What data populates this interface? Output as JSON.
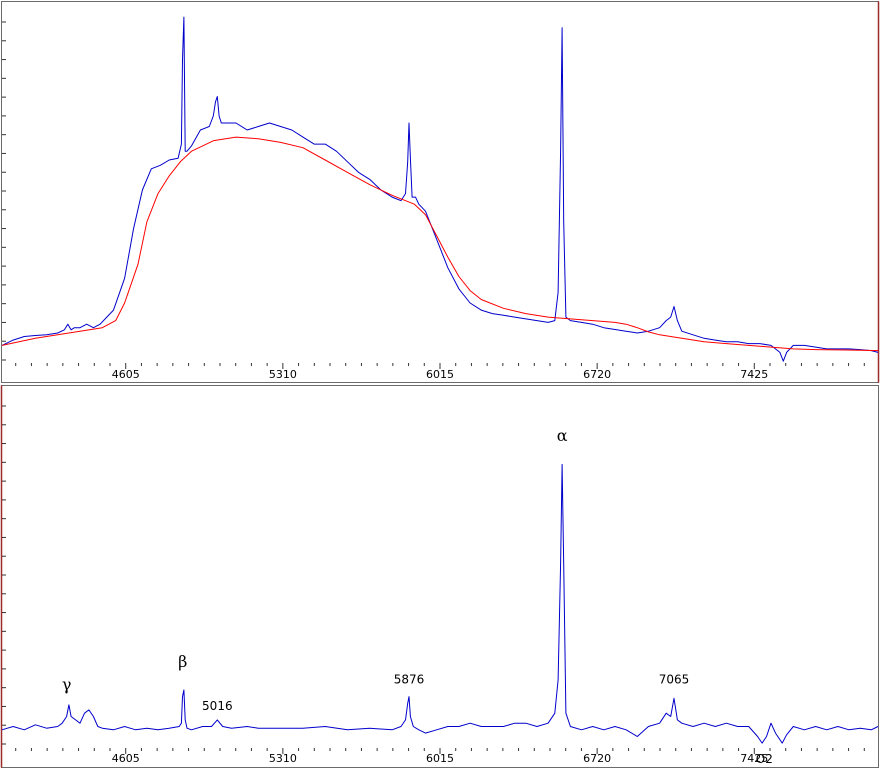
{
  "chart_data": [
    {
      "type": "line",
      "title": "",
      "xlabel": "",
      "ylabel": "",
      "xlim": [
        4050,
        7980
      ],
      "ylim": [
        0,
        1.0
      ],
      "grid": false,
      "x_ticks": [
        4605,
        5310,
        6015,
        6720,
        7425
      ],
      "series": [
        {
          "color": "#0000cc",
          "x": [
            4050,
            4100,
            4150,
            4200,
            4250,
            4300,
            4330,
            4345,
            4360,
            4375,
            4400,
            4430,
            4460,
            4490,
            4520,
            4550,
            4600,
            4640,
            4680,
            4720,
            4760,
            4800,
            4840,
            4855,
            4860,
            4866,
            4872,
            4880,
            4900,
            4940,
            4980,
            4998,
            5008,
            5016,
            5024,
            5034,
            5060,
            5100,
            5150,
            5200,
            5250,
            5300,
            5350,
            5400,
            5450,
            5500,
            5550,
            5600,
            5650,
            5700,
            5750,
            5800,
            5840,
            5860,
            5870,
            5876,
            5882,
            5890,
            5905,
            5920,
            5950,
            6000,
            6050,
            6100,
            6150,
            6200,
            6250,
            6300,
            6350,
            6400,
            6450,
            6500,
            6530,
            6545,
            6556,
            6563,
            6570,
            6580,
            6600,
            6650,
            6700,
            6750,
            6800,
            6850,
            6900,
            6950,
            7000,
            7030,
            7050,
            7065,
            7080,
            7100,
            7150,
            7200,
            7250,
            7300,
            7350,
            7400,
            7450,
            7500,
            7540,
            7555,
            7570,
            7600,
            7650,
            7700,
            7750,
            7800,
            7850,
            7900,
            7950,
            7980
          ],
          "values": [
            0.05,
            0.065,
            0.075,
            0.078,
            0.08,
            0.085,
            0.094,
            0.11,
            0.094,
            0.1,
            0.1,
            0.11,
            0.1,
            0.11,
            0.13,
            0.15,
            0.24,
            0.38,
            0.49,
            0.55,
            0.56,
            0.575,
            0.58,
            0.62,
            0.86,
            0.98,
            0.6,
            0.6,
            0.615,
            0.66,
            0.67,
            0.7,
            0.74,
            0.755,
            0.7,
            0.68,
            0.68,
            0.68,
            0.66,
            0.67,
            0.68,
            0.67,
            0.66,
            0.64,
            0.62,
            0.62,
            0.6,
            0.57,
            0.54,
            0.52,
            0.49,
            0.47,
            0.46,
            0.48,
            0.57,
            0.68,
            0.58,
            0.47,
            0.47,
            0.45,
            0.43,
            0.35,
            0.27,
            0.21,
            0.17,
            0.15,
            0.14,
            0.135,
            0.13,
            0.125,
            0.12,
            0.115,
            0.12,
            0.2,
            0.6,
            0.95,
            0.4,
            0.13,
            0.12,
            0.115,
            0.11,
            0.1,
            0.095,
            0.09,
            0.085,
            0.09,
            0.1,
            0.12,
            0.13,
            0.16,
            0.12,
            0.09,
            0.08,
            0.07,
            0.065,
            0.06,
            0.06,
            0.055,
            0.055,
            0.05,
            0.03,
            0.005,
            0.03,
            0.05,
            0.05,
            0.045,
            0.04,
            0.04,
            0.04,
            0.038,
            0.035,
            0.03
          ]
        },
        {
          "color": "#ff0000",
          "x": [
            4050,
            4200,
            4350,
            4500,
            4560,
            4600,
            4660,
            4700,
            4750,
            4800,
            4850,
            4900,
            4950,
            5000,
            5100,
            5200,
            5300,
            5400,
            5500,
            5600,
            5700,
            5800,
            5900,
            5950,
            6000,
            6050,
            6100,
            6150,
            6200,
            6300,
            6400,
            6500,
            6600,
            6700,
            6800,
            6850,
            6900,
            6950,
            7000,
            7100,
            7200,
            7300,
            7400,
            7500,
            7600,
            7700,
            7800,
            7900,
            7980
          ],
          "values": [
            0.05,
            0.07,
            0.085,
            0.1,
            0.12,
            0.17,
            0.28,
            0.4,
            0.48,
            0.53,
            0.57,
            0.6,
            0.615,
            0.63,
            0.64,
            0.635,
            0.625,
            0.61,
            0.575,
            0.54,
            0.505,
            0.475,
            0.45,
            0.42,
            0.36,
            0.3,
            0.245,
            0.205,
            0.18,
            0.155,
            0.14,
            0.13,
            0.125,
            0.12,
            0.115,
            0.11,
            0.1,
            0.088,
            0.08,
            0.07,
            0.06,
            0.055,
            0.05,
            0.045,
            0.04,
            0.038,
            0.037,
            0.036,
            0.035
          ]
        }
      ]
    },
    {
      "type": "line",
      "title": "",
      "xlabel": "",
      "ylabel": "",
      "xlim": [
        4050,
        7980
      ],
      "ylim": [
        -0.1,
        1.0
      ],
      "grid": false,
      "x_ticks": [
        4605,
        5310,
        6015,
        6720,
        7425
      ],
      "series": [
        {
          "color": "#0000cc",
          "x": [
            4050,
            4100,
            4150,
            4200,
            4250,
            4300,
            4320,
            4340,
            4350,
            4360,
            4380,
            4400,
            4420,
            4440,
            4460,
            4480,
            4500,
            4550,
            4600,
            4650,
            4700,
            4750,
            4800,
            4845,
            4855,
            4860,
            4866,
            4872,
            4880,
            4900,
            4950,
            4990,
            5016,
            5040,
            5080,
            5150,
            5200,
            5300,
            5400,
            5500,
            5600,
            5700,
            5800,
            5840,
            5860,
            5870,
            5876,
            5882,
            5895,
            5920,
            5950,
            6000,
            6050,
            6100,
            6150,
            6200,
            6250,
            6300,
            6350,
            6400,
            6450,
            6500,
            6530,
            6545,
            6556,
            6563,
            6570,
            6580,
            6600,
            6650,
            6700,
            6750,
            6800,
            6850,
            6900,
            6950,
            7000,
            7030,
            7050,
            7065,
            7080,
            7100,
            7150,
            7200,
            7250,
            7300,
            7350,
            7400,
            7440,
            7460,
            7480,
            7500,
            7520,
            7550,
            7570,
            7600,
            7650,
            7700,
            7750,
            7800,
            7850,
            7900,
            7950,
            7980
          ],
          "values": [
            0.0,
            0.01,
            0.0,
            0.015,
            0.005,
            0.01,
            0.02,
            0.04,
            0.075,
            0.04,
            0.03,
            0.02,
            0.05,
            0.06,
            0.04,
            0.01,
            0.005,
            0.0,
            0.01,
            0.0,
            0.005,
            0.0,
            0.005,
            0.01,
            0.02,
            0.1,
            0.12,
            0.03,
            0.005,
            0.0,
            0.01,
            0.01,
            0.03,
            0.01,
            0.005,
            0.01,
            0.005,
            0.005,
            0.005,
            0.01,
            0.0,
            0.005,
            0.0,
            0.01,
            0.03,
            0.08,
            0.1,
            0.04,
            0.01,
            0.0,
            -0.01,
            0.0,
            0.01,
            0.01,
            0.02,
            0.01,
            0.01,
            0.01,
            0.02,
            0.02,
            0.01,
            0.02,
            0.05,
            0.15,
            0.5,
            0.8,
            0.5,
            0.05,
            0.01,
            0.0,
            0.01,
            0.0,
            0.01,
            0.0,
            -0.02,
            0.01,
            0.02,
            0.05,
            0.04,
            0.095,
            0.03,
            0.02,
            0.01,
            0.02,
            0.01,
            0.02,
            0.01,
            0.01,
            -0.02,
            -0.04,
            -0.02,
            0.02,
            -0.01,
            -0.04,
            -0.015,
            0.01,
            0.0,
            0.01,
            0.0,
            0.01,
            0.0,
            0.005,
            0.0,
            0.01
          ]
        }
      ],
      "annotations": [
        {
          "text": "γ",
          "x": 4340,
          "y": 0.12,
          "style": "greek"
        },
        {
          "text": "β",
          "x": 4861,
          "y": 0.19,
          "style": "greek"
        },
        {
          "text": "5016",
          "x": 5016,
          "y": 0.06,
          "style": "num"
        },
        {
          "text": "5876",
          "x": 5876,
          "y": 0.14,
          "style": "num"
        },
        {
          "text": "α",
          "x": 6563,
          "y": 0.87,
          "style": "greek"
        },
        {
          "text": "7065",
          "x": 7065,
          "y": 0.14,
          "style": "num"
        },
        {
          "text": "O2",
          "x": 7470,
          "y": -0.1,
          "style": "num"
        }
      ]
    }
  ]
}
